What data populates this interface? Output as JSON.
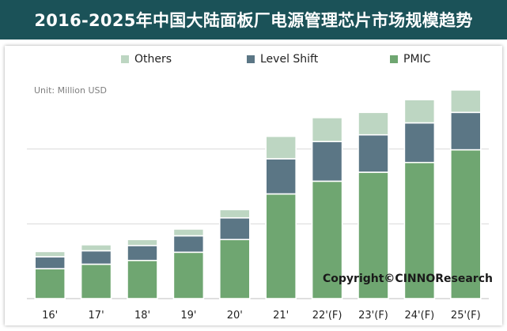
{
  "title": "2016-2025年中国大陆面板厂电源管理芯片市场规模趋势",
  "unit_label": "Unit: Million USD",
  "credit": "Copyright©CINNOResearch",
  "colors": {
    "header_bg": "#1b5258",
    "pmic": "#6fa671",
    "level_shift": "#5b7685",
    "others": "#bdd6c2",
    "gridline": "#d9d9d9"
  },
  "chart_data": {
    "type": "bar",
    "stacked": true,
    "title": "2016-2025年中国大陆面板厂电源管理芯片市场规模趋势",
    "subtitle": "",
    "xlabel": "",
    "ylabel": "Unit: Million USD",
    "categories": [
      "16'",
      "17'",
      "18'",
      "19'",
      "20'",
      "21'",
      "22'(F)",
      "23'(F)",
      "24'(F)",
      "25'(F)"
    ],
    "ylim": [
      0,
      300
    ],
    "grid": true,
    "legend_position": "top",
    "series": [
      {
        "name": "PMIC",
        "color": "#6fa671",
        "values": [
          40,
          46,
          51,
          62,
          79,
          140,
          157,
          169,
          182,
          199
        ]
      },
      {
        "name": "Level Shift",
        "color": "#5b7685",
        "values": [
          16,
          18,
          20,
          22,
          29,
          47,
          53,
          50,
          53,
          50
        ]
      },
      {
        "name": "Others",
        "color": "#bdd6c2",
        "values": [
          7,
          8,
          8,
          9,
          11,
          30,
          32,
          30,
          31,
          30
        ]
      }
    ]
  }
}
